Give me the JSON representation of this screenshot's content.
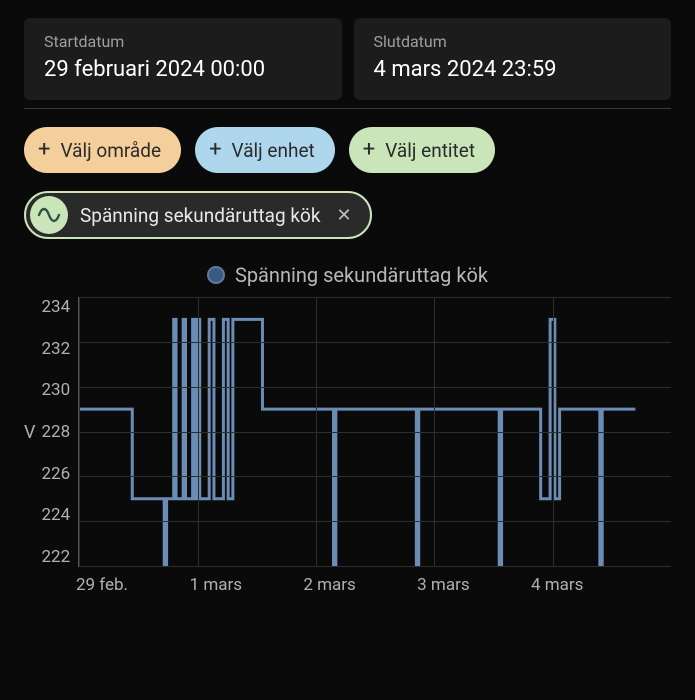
{
  "dateRange": {
    "start": {
      "label": "Startdatum",
      "value": "29 februari 2024 00:00"
    },
    "end": {
      "label": "Slutdatum",
      "value": "4 mars 2024 23:59"
    }
  },
  "filterChips": {
    "area": {
      "label": "Välj område",
      "bg": "#f5cf9b"
    },
    "device": {
      "label": "Välj enhet",
      "bg": "#aed7ee"
    },
    "entity": {
      "label": "Välj entitet",
      "bg": "#cae5ba"
    }
  },
  "selectedEntity": {
    "label": "Spänning sekundäruttag kök",
    "iconColor": "#2b5540",
    "chipBorder": "#cae5ba"
  },
  "legend": {
    "label": "Spänning sekundäruttag kök",
    "color": "#3a5a82"
  },
  "chart": {
    "type": "step-line",
    "yAxis": {
      "label": "V",
      "min": 222,
      "max": 234,
      "ticks": [
        234,
        232,
        230,
        228,
        226,
        224,
        222
      ],
      "tickColor": "#b0b0b0",
      "gridColor": "#2e2e2e"
    },
    "xAxis": {
      "min": 0,
      "max": 5,
      "ticks": [
        {
          "pos": 0.0,
          "label": "29 feb."
        },
        {
          "pos": 1.0,
          "label": "1 mars"
        },
        {
          "pos": 2.0,
          "label": "2 mars"
        },
        {
          "pos": 3.0,
          "label": "3 mars"
        },
        {
          "pos": 4.0,
          "label": "4 mars"
        }
      ],
      "gridColor": "#2e2e2e"
    },
    "series": {
      "color": "#6a8cb5",
      "width": 3,
      "points": [
        [
          0.0,
          229
        ],
        [
          0.45,
          229
        ],
        [
          0.45,
          225
        ],
        [
          0.72,
          225
        ],
        [
          0.72,
          222
        ],
        [
          0.74,
          222
        ],
        [
          0.74,
          225
        ],
        [
          0.8,
          225
        ],
        [
          0.8,
          233
        ],
        [
          0.82,
          233
        ],
        [
          0.82,
          225
        ],
        [
          0.88,
          225
        ],
        [
          0.88,
          233
        ],
        [
          0.9,
          233
        ],
        [
          0.9,
          225
        ],
        [
          0.96,
          225
        ],
        [
          0.96,
          233
        ],
        [
          0.98,
          233
        ],
        [
          0.98,
          225
        ],
        [
          1.0,
          225
        ],
        [
          1.0,
          233
        ],
        [
          1.02,
          233
        ],
        [
          1.02,
          225
        ],
        [
          1.1,
          225
        ],
        [
          1.1,
          233
        ],
        [
          1.14,
          233
        ],
        [
          1.14,
          225
        ],
        [
          1.22,
          225
        ],
        [
          1.22,
          233
        ],
        [
          1.26,
          233
        ],
        [
          1.26,
          225
        ],
        [
          1.3,
          225
        ],
        [
          1.3,
          233
        ],
        [
          1.55,
          233
        ],
        [
          1.55,
          229
        ],
        [
          2.15,
          229
        ],
        [
          2.15,
          222
        ],
        [
          2.17,
          222
        ],
        [
          2.17,
          229
        ],
        [
          2.85,
          229
        ],
        [
          2.85,
          222
        ],
        [
          2.87,
          222
        ],
        [
          2.87,
          229
        ],
        [
          3.55,
          229
        ],
        [
          3.55,
          222
        ],
        [
          3.57,
          222
        ],
        [
          3.57,
          229
        ],
        [
          3.9,
          229
        ],
        [
          3.9,
          225
        ],
        [
          3.98,
          225
        ],
        [
          3.98,
          233
        ],
        [
          4.02,
          233
        ],
        [
          4.02,
          225
        ],
        [
          4.06,
          225
        ],
        [
          4.06,
          229
        ],
        [
          4.4,
          229
        ],
        [
          4.4,
          222
        ],
        [
          4.42,
          222
        ],
        [
          4.42,
          229
        ],
        [
          4.7,
          229
        ]
      ]
    },
    "background": "#0a0a0a"
  }
}
